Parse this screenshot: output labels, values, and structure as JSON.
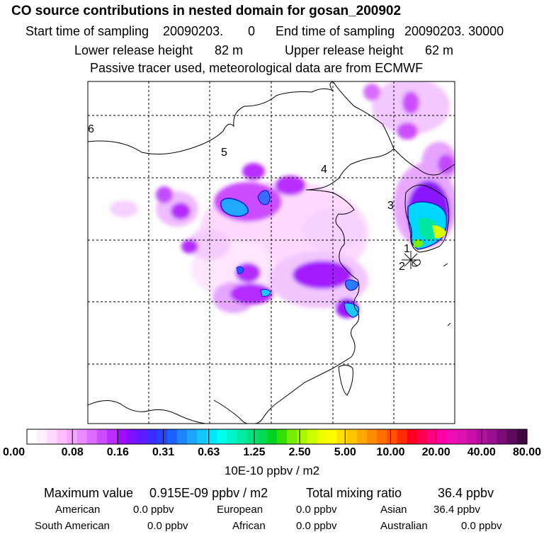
{
  "header": {
    "title": "CO  source contributions in nested domain for gosan_200902",
    "start_label": "Start time of sampling",
    "start_value": "20090203.",
    "start_hour": "0",
    "end_label": "End time of sampling",
    "end_value": "20090203. 30000",
    "lower_label": "Lower release height",
    "lower_value": "82 m",
    "upper_label": "Upper release height",
    "upper_value": "62 m",
    "note": "Passive tracer used, meteorological data are from ECMWF"
  },
  "map": {
    "region_labels": [
      "1",
      "2",
      "3",
      "4",
      "5",
      "6"
    ],
    "grid": "dashed"
  },
  "colorbar": {
    "tick_labels": [
      "0.00",
      "0.08",
      "0.16",
      "0.31",
      "0.63",
      "1.25",
      "2.50",
      "5.00",
      "10.00",
      "20.00",
      "40.00",
      "80.00"
    ],
    "unit": "10E-10 ppbv / m2",
    "colors": [
      "#ffffff",
      "#fff0ff",
      "#ffd9ff",
      "#ffbfff",
      "#f6a6ff",
      "#ea8cff",
      "#db6cff",
      "#cc4dff",
      "#b92dff",
      "#a00aff",
      "#7f10ff",
      "#5c1cff",
      "#3a2bff",
      "#2644ff",
      "#1c62ff",
      "#1f85ff",
      "#1ea6ff",
      "#14c6ff",
      "#00e6ff",
      "#00ffee",
      "#00f5c8",
      "#00eca4",
      "#00e37f",
      "#00db55",
      "#00d421",
      "#33e000",
      "#77ee00",
      "#aaf600",
      "#ccff00",
      "#eeff00",
      "#fffa00",
      "#ffe000",
      "#ffc400",
      "#ffa800",
      "#ff8c00",
      "#ff7000",
      "#ff4f00",
      "#ff2a00",
      "#ff0020",
      "#ff0050",
      "#ff0080",
      "#ff00a8",
      "#ee0fb3",
      "#dd11b0",
      "#c810a8",
      "#b0109e",
      "#961090",
      "#7a0c7a",
      "#5e0a5e",
      "#3f063f"
    ]
  },
  "summary": {
    "max_label": "Maximum value",
    "max_value": "0.915E-09 ppbv / m2",
    "total_label": "Total mixing ratio",
    "total_value": "36.4 ppbv",
    "american_label": "American",
    "american_value": "0.0 ppbv",
    "european_label": "European",
    "european_value": "0.0 ppbv",
    "asian_label": "Asian",
    "asian_value": "36.4 ppbv",
    "south_american_label": "South American",
    "south_american_value": "0.0 ppbv",
    "african_label": "African",
    "african_value": "0.0 ppbv",
    "australian_label": "Australian",
    "australian_value": "0.0 ppbv"
  }
}
